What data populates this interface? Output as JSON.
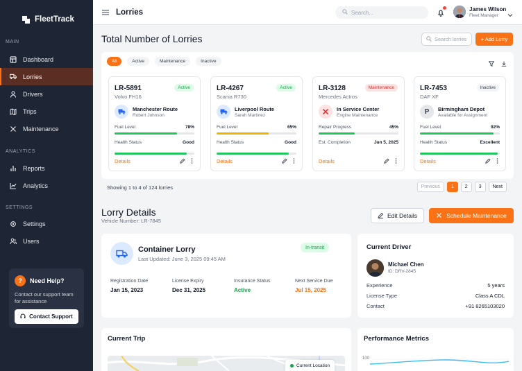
{
  "brand": {
    "name": "FleetTrack"
  },
  "sidebar": {
    "sections": [
      {
        "title": "MAIN",
        "items": [
          {
            "label": "Dashboard",
            "icon": "dashboard-icon"
          },
          {
            "label": "Lorries",
            "icon": "truck-icon",
            "active": true
          },
          {
            "label": "Drivers",
            "icon": "user-icon"
          },
          {
            "label": "Trips",
            "icon": "map-icon"
          },
          {
            "label": "Maintenance",
            "icon": "tools-icon"
          }
        ]
      },
      {
        "title": "ANALYTICS",
        "items": [
          {
            "label": "Reports",
            "icon": "bar-chart-icon"
          },
          {
            "label": "Analytics",
            "icon": "line-chart-icon"
          }
        ]
      },
      {
        "title": "SETTINGS",
        "items": [
          {
            "label": "Settings",
            "icon": "gear-icon"
          },
          {
            "label": "Users",
            "icon": "users-icon"
          }
        ]
      }
    ],
    "help": {
      "title": "Need Help?",
      "text": "Contact our support team for assistance",
      "button": "Contact Support"
    }
  },
  "topbar": {
    "title": "Lorries",
    "search_placeholder": "Search...",
    "user_name": "James Wilson",
    "user_role": "Fleet Manager"
  },
  "lorries": {
    "title": "Total Number of Lorries",
    "search_placeholder": "Search lorries",
    "add_button": "+ Add Lorry",
    "filters": [
      "All",
      "Active",
      "Maintenance",
      "Inactive"
    ],
    "active_filter": "All",
    "cards": [
      {
        "id": "LR-5891",
        "model": "Volvo FH16",
        "status": "Active",
        "location": "Manchester Route",
        "sub": "Robert Johnson",
        "metric1_label": "Fuel Level",
        "metric1_value": "78%",
        "metric1_fill": 0.78,
        "metric1_color": "#22c55e",
        "metric2_label": "Health Status",
        "metric2_value": "Good",
        "metric2_fill": 0.9,
        "metric2_color": "#22c55e",
        "icon_type": "truck",
        "details": "Details"
      },
      {
        "id": "LR-4267",
        "model": "Scania R730",
        "status": "Active",
        "location": "Liverpool Route",
        "sub": "Sarah Martinez",
        "metric1_label": "Fuel Level",
        "metric1_value": "65%",
        "metric1_fill": 0.65,
        "metric1_color": "#eab308",
        "metric2_label": "Health Status",
        "metric2_value": "Good",
        "metric2_fill": 0.9,
        "metric2_color": "#22c55e",
        "icon_type": "truck",
        "details": "Details"
      },
      {
        "id": "LR-3128",
        "model": "Mercedes Actros",
        "status": "Maintenance",
        "location": "In Service Center",
        "sub": "Engine Maintenance",
        "metric1_label": "Repair Progress",
        "metric1_value": "45%",
        "metric1_fill": 0.45,
        "metric1_color": "#22c55e",
        "metric2_label": "Est. Completion",
        "metric2_value": "Jun 5, 2025",
        "metric2_fill": null,
        "metric2_color": "",
        "icon_type": "tools",
        "details": "Details"
      },
      {
        "id": "LR-7453",
        "model": "DAF XF",
        "status": "Inactive",
        "location": "Birmingham Depot",
        "sub": "Available for Assignment",
        "metric1_label": "Fuel Level",
        "metric1_value": "92%",
        "metric1_fill": 0.92,
        "metric1_color": "#22c55e",
        "metric2_label": "Health Status",
        "metric2_value": "Excellent",
        "metric2_fill": 0.97,
        "metric2_color": "#22c55e",
        "icon_type": "parking",
        "details": "Details"
      }
    ],
    "showing": "Showing 1 to 4 of 124 lorries",
    "pagination": [
      "Previous",
      "1",
      "2",
      "3",
      "Next"
    ],
    "current_page": "1"
  },
  "lorry_details": {
    "title": "Lorry Details",
    "vehicle_number": "Vehicle Number: LR-7845",
    "edit_button": "Edit Details",
    "schedule_button": "Schedule Maintenance",
    "type": "Container Lorry",
    "updated": "Last Updated: June 3, 2025 09:45 AM",
    "status": "In-transit",
    "stats": [
      {
        "label": "Registration Date",
        "value": "Jan 15, 2023",
        "color": "#111827"
      },
      {
        "label": "License Expiry",
        "value": "Dec 31, 2025",
        "color": "#111827"
      },
      {
        "label": "Insurance Status",
        "value": "Active",
        "color": "#16a34a"
      },
      {
        "label": "Next Service Due",
        "value": "Jul 15, 2025",
        "color": "#f97316"
      }
    ]
  },
  "current_driver": {
    "title": "Current Driver",
    "name": "Michael Chen",
    "id": "ID: DRV-2845",
    "rows": [
      {
        "label": "Experience",
        "value": "5 years"
      },
      {
        "label": "License Type",
        "value": "Class A CDL"
      },
      {
        "label": "Contact",
        "value": "+91 8265103020"
      }
    ]
  },
  "current_trip": {
    "title": "Current Trip",
    "map_label": "Current Location"
  },
  "performance": {
    "title": "Performance Metrics",
    "y_tick": "100"
  },
  "colors": {
    "accent": "#f97316",
    "sidebar": "#1e2535",
    "success": "#16a34a"
  }
}
